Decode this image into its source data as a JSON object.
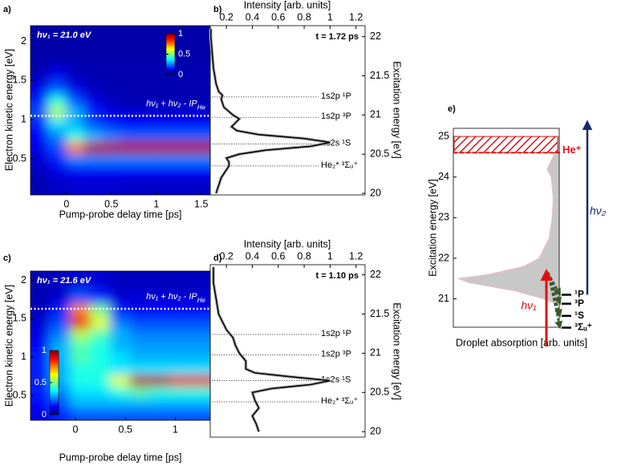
{
  "chart_data": [
    {
      "type": "heatmap",
      "panel_label": "a)",
      "annotation": "hν₁ = 21.0 eV",
      "threshold_label": "hν₁ + hν₂ - IP",
      "threshold_label_sub": "He",
      "threshold": 1.05,
      "xlabel": "Pump-probe delay time [ps]",
      "ylabel": "Electron kinetic energy [eV]",
      "x": [
        -0.3,
        -0.1,
        0.1,
        0.3,
        0.5,
        0.7,
        0.9,
        1.1,
        1.3,
        1.5
      ],
      "y": [
        0.2,
        0.35,
        0.5,
        0.65,
        0.8,
        0.95,
        1.1,
        1.25,
        1.4,
        1.6,
        1.8,
        2.0
      ],
      "z": [
        [
          0.05,
          0.07,
          0.08,
          0.08,
          0.08,
          0.07,
          0.07,
          0.07,
          0.07,
          0.07
        ],
        [
          0.06,
          0.1,
          0.12,
          0.12,
          0.12,
          0.12,
          0.12,
          0.12,
          0.12,
          0.12
        ],
        [
          0.08,
          0.15,
          0.25,
          0.25,
          0.25,
          0.25,
          0.25,
          0.25,
          0.25,
          0.25
        ],
        [
          0.1,
          0.2,
          0.75,
          0.95,
          0.95,
          0.95,
          0.95,
          0.95,
          0.95,
          0.95
        ],
        [
          0.12,
          0.25,
          0.4,
          0.3,
          0.25,
          0.22,
          0.22,
          0.22,
          0.22,
          0.22
        ],
        [
          0.15,
          0.35,
          0.3,
          0.2,
          0.15,
          0.12,
          0.12,
          0.12,
          0.12,
          0.12
        ],
        [
          0.2,
          0.55,
          0.3,
          0.15,
          0.1,
          0.08,
          0.08,
          0.08,
          0.08,
          0.08
        ],
        [
          0.15,
          0.4,
          0.2,
          0.1,
          0.06,
          0.05,
          0.05,
          0.05,
          0.05,
          0.05
        ],
        [
          0.1,
          0.2,
          0.1,
          0.06,
          0.05,
          0.05,
          0.05,
          0.05,
          0.05,
          0.05
        ],
        [
          0.05,
          0.1,
          0.06,
          0.05,
          0.05,
          0.05,
          0.05,
          0.05,
          0.05,
          0.05
        ],
        [
          0.04,
          0.04,
          0.04,
          0.04,
          0.04,
          0.04,
          0.04,
          0.04,
          0.04,
          0.04
        ],
        [
          0.04,
          0.04,
          0.04,
          0.04,
          0.04,
          0.04,
          0.04,
          0.04,
          0.04,
          0.04
        ]
      ],
      "xlim": [
        -0.4,
        1.6
      ],
      "ylim": [
        0.04,
        2.2
      ],
      "xticks": [
        0,
        0.5,
        1,
        1.5
      ],
      "yticks": [
        0.5,
        1,
        1.5,
        2
      ],
      "colorbar_ticks": [
        0,
        0.5,
        1
      ]
    },
    {
      "type": "profile",
      "panel_label": "b)",
      "annotation": "t = 1.72 ps",
      "xlabel": "Intensity [arb. units]",
      "ylabel": "Excitation energy [eV]",
      "color": "#000000",
      "y": [
        20.0,
        20.1,
        20.2,
        20.3,
        20.35,
        20.4,
        20.45,
        20.5,
        20.55,
        20.6,
        20.65,
        20.7,
        20.75,
        20.8,
        20.85,
        20.9,
        20.95,
        21.0,
        21.1,
        21.2,
        21.25,
        21.3,
        21.4,
        21.6,
        21.8,
        22.0,
        22.1
      ],
      "values": [
        0.12,
        0.14,
        0.16,
        0.2,
        0.22,
        0.22,
        0.2,
        0.3,
        0.5,
        0.85,
        1.0,
        0.8,
        0.45,
        0.28,
        0.24,
        0.27,
        0.3,
        0.25,
        0.18,
        0.16,
        0.17,
        0.14,
        0.12,
        0.1,
        0.09,
        0.08,
        0.08
      ],
      "xlim": [
        0.075,
        1.27
      ],
      "ylim": [
        19.98,
        22.14
      ],
      "xticks": [
        0.2,
        0.4,
        0.6,
        0.8,
        1,
        1.2
      ],
      "yticks": [
        20,
        20.5,
        21,
        21.5,
        22
      ],
      "levels": [
        {
          "label": "1s2p ¹P",
          "energy": 21.23
        },
        {
          "label": "1s2p ³P",
          "energy": 20.97
        },
        {
          "label": "1s2s ¹S",
          "energy": 20.63
        },
        {
          "label": "He₂* ³Σᵤ⁺",
          "energy": 20.35
        }
      ]
    },
    {
      "type": "heatmap",
      "panel_label": "c)",
      "annotation": "hν₁ = 21.6 eV",
      "threshold_label": "hν₁ + hν₂ - IP",
      "threshold_label_sub": "He",
      "threshold": 1.63,
      "xlabel": "Pump-probe delay time [ps]",
      "ylabel": "Electron kinetic energy [eV]",
      "x": [
        -0.35,
        -0.15,
        0.05,
        0.25,
        0.45,
        0.65,
        0.85,
        1.05,
        1.25
      ],
      "y": [
        0.25,
        0.4,
        0.55,
        0.7,
        0.85,
        1.0,
        1.15,
        1.3,
        1.45,
        1.6,
        1.8,
        2.0
      ],
      "z": [
        [
          0.1,
          0.15,
          0.2,
          0.2,
          0.2,
          0.2,
          0.2,
          0.2,
          0.2
        ],
        [
          0.12,
          0.2,
          0.3,
          0.3,
          0.3,
          0.3,
          0.3,
          0.3,
          0.3
        ],
        [
          0.15,
          0.25,
          0.35,
          0.35,
          0.4,
          0.45,
          0.4,
          0.4,
          0.4
        ],
        [
          0.15,
          0.3,
          0.4,
          0.4,
          0.6,
          0.95,
          0.95,
          0.9,
          0.9
        ],
        [
          0.15,
          0.3,
          0.4,
          0.4,
          0.35,
          0.35,
          0.35,
          0.35,
          0.35
        ],
        [
          0.15,
          0.3,
          0.45,
          0.4,
          0.35,
          0.3,
          0.3,
          0.3,
          0.3
        ],
        [
          0.12,
          0.3,
          0.45,
          0.4,
          0.3,
          0.28,
          0.28,
          0.28,
          0.28
        ],
        [
          0.1,
          0.25,
          0.55,
          0.45,
          0.3,
          0.25,
          0.25,
          0.25,
          0.25
        ],
        [
          0.08,
          0.2,
          0.9,
          0.6,
          0.25,
          0.2,
          0.2,
          0.2,
          0.2
        ],
        [
          0.06,
          0.15,
          0.75,
          0.5,
          0.15,
          0.12,
          0.12,
          0.12,
          0.12
        ],
        [
          0.05,
          0.08,
          0.2,
          0.15,
          0.08,
          0.08,
          0.08,
          0.08,
          0.08
        ],
        [
          0.05,
          0.06,
          0.08,
          0.08,
          0.06,
          0.06,
          0.06,
          0.06,
          0.06
        ]
      ],
      "xlim": [
        -0.45,
        1.35
      ],
      "ylim": [
        0.18,
        2.12
      ],
      "xticks": [
        0,
        0.5,
        1
      ],
      "yticks": [
        0.5,
        1,
        1.5,
        2
      ],
      "colorbar_ticks": [
        0,
        0.5,
        1
      ]
    },
    {
      "type": "profile",
      "panel_label": "d)",
      "annotation": "t = 1.10 ps",
      "xlabel": "Intensity [arb. units]",
      "ylabel": "Excitation energy [eV]",
      "color": "#000000",
      "y": [
        20.0,
        20.1,
        20.2,
        20.3,
        20.4,
        20.5,
        20.55,
        20.6,
        20.65,
        20.7,
        20.75,
        20.8,
        20.9,
        21.0,
        21.1,
        21.2,
        21.3,
        21.5,
        21.7,
        21.9,
        22.1
      ],
      "values": [
        0.45,
        0.43,
        0.4,
        0.45,
        0.42,
        0.4,
        0.55,
        0.85,
        1.0,
        0.7,
        0.42,
        0.35,
        0.35,
        0.3,
        0.27,
        0.25,
        0.2,
        0.14,
        0.12,
        0.1,
        0.1
      ],
      "xlim": [
        0.075,
        1.27
      ],
      "ylim": [
        19.93,
        22.13
      ],
      "xticks": [
        0.2,
        0.4,
        0.6,
        0.8,
        1,
        1.2
      ],
      "yticks": [
        20,
        20.5,
        21,
        21.5,
        22
      ],
      "levels": [
        {
          "label": "1s2p ¹P",
          "energy": 21.24
        },
        {
          "label": "1s2p ³P",
          "energy": 20.98
        },
        {
          "label": "1s2s ¹S",
          "energy": 20.65
        },
        {
          "label": "He₂* ³Σᵤ⁺",
          "energy": 20.38
        }
      ]
    },
    {
      "type": "area",
      "panel_label": "e)",
      "xlabel": "Droplet absorption [arb. units]",
      "ylabel": "Excitation energy [eV]",
      "color": "#c8c8c8",
      "y": [
        20.9,
        21.0,
        21.2,
        21.4,
        21.5,
        21.6,
        21.8,
        22.0,
        22.5,
        23.0,
        23.5,
        24.0,
        24.2,
        24.5,
        25.0
      ],
      "values": [
        0.05,
        0.15,
        0.45,
        0.9,
        1.0,
        0.7,
        0.35,
        0.2,
        0.1,
        0.07,
        0.06,
        0.08,
        0.12,
        0.06,
        0.03
      ],
      "xlim": [
        1.05,
        0
      ],
      "ylim": [
        20.3,
        25.2
      ],
      "yticks": [
        21,
        22,
        23,
        24,
        25
      ],
      "ion_band": [
        24.6,
        25.0
      ],
      "ion_label": "He⁺",
      "levels": [
        {
          "label": "¹P",
          "energy": 21.1
        },
        {
          "label": "³P",
          "energy": 20.88
        },
        {
          "label": "¹S",
          "energy": 20.58
        },
        {
          "label": "³Σᵤ⁺",
          "energy": 20.29
        }
      ],
      "arrow_labels": [
        "hν₁",
        "hν₂"
      ]
    }
  ]
}
